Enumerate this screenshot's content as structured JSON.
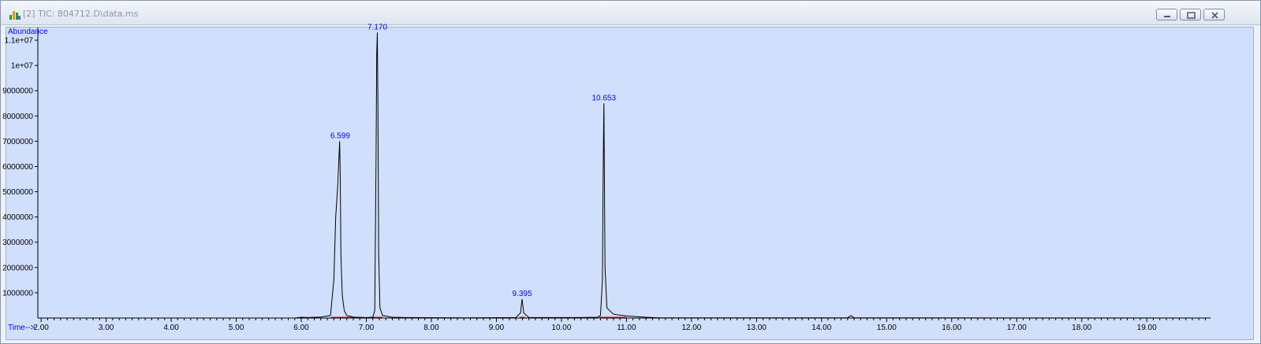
{
  "window": {
    "title": "[2] TIC: 804712.D\\data.ms",
    "icon": "chromatogram-app-icon",
    "buttons": [
      {
        "name": "minimize-button",
        "icon": "minimize-icon"
      },
      {
        "name": "restore-button",
        "icon": "restore-icon"
      },
      {
        "name": "close-button",
        "icon": "close-icon"
      }
    ]
  },
  "colors": {
    "plot_background": "#d0e0fc",
    "trace": "#000000",
    "peak_label": "#0000ff",
    "axis_label": "#0000ff",
    "baseline_marker": "#ff0000"
  },
  "chart_data": {
    "type": "line",
    "title": "",
    "ylabel": "Abundance",
    "xlabel": "Time-->",
    "xlim": [
      1.95,
      19.98
    ],
    "ylim": [
      0,
      11500000
    ],
    "x_ticks": [
      "2.00",
      "3.00",
      "4.00",
      "5.00",
      "6.00",
      "7.00",
      "8.00",
      "9.00",
      "10.00",
      "11.00",
      "12.00",
      "13.00",
      "14.00",
      "15.00",
      "16.00",
      "17.00",
      "18.00",
      "19.00"
    ],
    "y_ticks": [
      "1000000",
      "2000000",
      "3000000",
      "4000000",
      "5000000",
      "6000000",
      "7000000",
      "8000000",
      "9000000",
      "1e+07",
      "1.1e+07"
    ],
    "series": [
      {
        "x": [
          1.95,
          5.9,
          6.0,
          6.1,
          6.3,
          6.45,
          6.5,
          6.53,
          6.56,
          6.59,
          6.6,
          6.61,
          6.63,
          6.66,
          6.7,
          6.8,
          6.9,
          7.0,
          7.1,
          7.13,
          7.15,
          7.16,
          7.17,
          7.18,
          7.19,
          7.21,
          7.25,
          7.4,
          7.6,
          8.5,
          9.3,
          9.37,
          9.395,
          9.42,
          9.5,
          10.3,
          10.55,
          10.6,
          10.63,
          10.64,
          10.65,
          10.653,
          10.66,
          10.67,
          10.7,
          10.8,
          11.0,
          11.3,
          11.5,
          14.4,
          14.45,
          14.5,
          19.98
        ],
        "y": [
          0,
          0,
          30000,
          20000,
          40000,
          100000,
          1500000,
          4000000,
          5200000,
          7000000,
          5500000,
          2500000,
          900000,
          300000,
          100000,
          40000,
          20000,
          20000,
          30000,
          300000,
          6500000,
          10500000,
          11300000,
          8000000,
          2500000,
          400000,
          100000,
          30000,
          20000,
          10000,
          20000,
          200000,
          750000,
          200000,
          20000,
          20000,
          30000,
          100000,
          1500000,
          5200000,
          7800000,
          8500000,
          6000000,
          2000000,
          400000,
          150000,
          80000,
          30000,
          10000,
          10000,
          100000,
          10000,
          0
        ]
      }
    ],
    "peak_labels": [
      {
        "x": 6.599,
        "y": 7000000,
        "label": "6.599"
      },
      {
        "x": 7.17,
        "y": 11300000,
        "label": "7.170"
      },
      {
        "x": 9.395,
        "y": 750000,
        "label": "9.395"
      },
      {
        "x": 10.653,
        "y": 8500000,
        "label": "10.653"
      }
    ],
    "baseline_segments": [
      [
        6.46,
        6.95
      ],
      [
        7.1,
        7.25
      ],
      [
        9.36,
        9.44
      ],
      [
        10.58,
        11.0
      ]
    ],
    "grid": false,
    "legend": "none"
  }
}
